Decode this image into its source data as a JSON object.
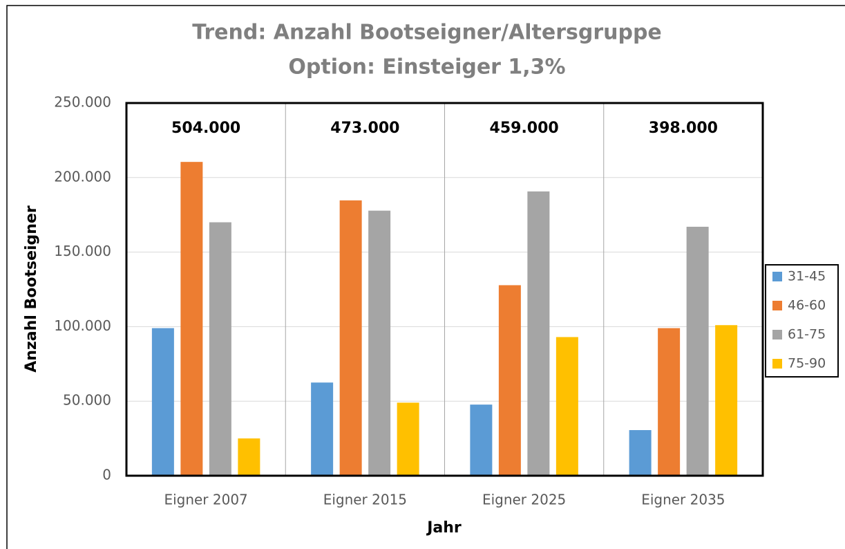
{
  "chart_data": {
    "type": "bar",
    "title": "Trend: Anzahl Bootseigner/Altersgruppe",
    "subtitle": "Option: Einsteiger 1,3%",
    "x_label": "Jahr",
    "y_label": "Anzahl Bootseigner",
    "categories": [
      "Eigner 2007",
      "Eigner 2015",
      "Eigner 2025",
      "Eigner 2035"
    ],
    "annotations": [
      "504.000",
      "473.000",
      "459.000",
      "398.000"
    ],
    "series": [
      {
        "name": "31-45",
        "color": "#5b9bd5",
        "values": [
          99000,
          62500,
          47700,
          30600
        ]
      },
      {
        "name": "46-60",
        "color": "#ed7d31",
        "values": [
          210500,
          184700,
          127800,
          99000
        ]
      },
      {
        "name": "61-75",
        "color": "#a5a5a5",
        "values": [
          170000,
          177800,
          190700,
          167000
        ]
      },
      {
        "name": "75-90",
        "color": "#ffc000",
        "values": [
          25000,
          49000,
          93000,
          101000
        ]
      }
    ],
    "ylim": [
      0,
      250000
    ],
    "yticks": [
      0,
      {
        "value": 50000,
        "label": "50.000"
      },
      {
        "value": 100000,
        "label": "100.000"
      },
      {
        "value": 150000,
        "label": "150.000"
      },
      {
        "value": 200000,
        "label": "200.000"
      },
      {
        "value": 250000,
        "label": "250.000"
      }
    ],
    "grid": true,
    "legend": "right"
  }
}
